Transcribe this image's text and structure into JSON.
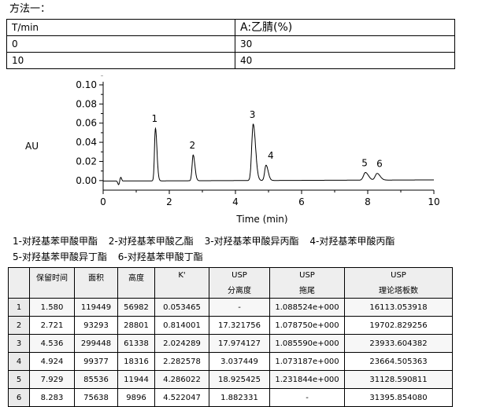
{
  "method": {
    "title": "方法一："
  },
  "gradient": {
    "header": [
      "T/min",
      "A:乙腈(%)"
    ],
    "rows": [
      [
        "0",
        "30"
      ],
      [
        "10",
        "40"
      ]
    ]
  },
  "chart_data": {
    "type": "line",
    "ylabel": "AU",
    "xlabel": "Time (min)",
    "xlim": [
      0,
      10
    ],
    "ylim": [
      -0.01,
      0.1
    ],
    "x_ticks": [
      "0",
      "2",
      "4",
      "6",
      "8",
      "10"
    ],
    "y_ticks": [
      "0.10",
      "0.08",
      "0.06",
      "0.04",
      "0.02",
      "0.00"
    ],
    "peaks": [
      {
        "label": "1",
        "x": 1.58,
        "y": 0.055
      },
      {
        "label": "2",
        "x": 2.721,
        "y": 0.027
      },
      {
        "label": "3",
        "x": 4.536,
        "y": 0.059
      },
      {
        "label": "4",
        "x": 4.924,
        "y": 0.016
      },
      {
        "label": "5",
        "x": 7.929,
        "y": 0.008
      },
      {
        "label": "6",
        "x": 8.283,
        "y": 0.007
      }
    ],
    "grid": false
  },
  "legend": {
    "line1": [
      "1-对羟基苯甲酸甲酯",
      "2-对羟基苯甲酸乙酯",
      "3-对羟基苯甲酸异丙酯",
      "4-对羟基苯甲酸丙酯"
    ],
    "line2": [
      "5-对羟基苯甲酸异丁酯",
      "6-对羟基苯甲酸丁酯"
    ]
  },
  "results": {
    "headers": [
      {
        "top": "",
        "sub": ""
      },
      {
        "top": "保留时间",
        "sub": ""
      },
      {
        "top": "面积",
        "sub": ""
      },
      {
        "top": "高度",
        "sub": ""
      },
      {
        "top": "K'",
        "sub": ""
      },
      {
        "top": "USP",
        "sub": "分离度"
      },
      {
        "top": "USP",
        "sub": "拖尾"
      },
      {
        "top": "USP",
        "sub": "理论塔板数"
      }
    ],
    "rows": [
      [
        "1",
        "1.580",
        "119449",
        "56982",
        "0.053465",
        "-",
        "1.088524e+000",
        "16113.053918"
      ],
      [
        "2",
        "2.721",
        "93293",
        "28801",
        "0.814001",
        "17.321756",
        "1.078750e+000",
        "19702.829256"
      ],
      [
        "3",
        "4.536",
        "299448",
        "61338",
        "2.024289",
        "17.974127",
        "1.085590e+000",
        "23933.604382"
      ],
      [
        "4",
        "4.924",
        "99377",
        "18316",
        "2.282578",
        "3.037449",
        "1.073187e+000",
        "23664.505363"
      ],
      [
        "5",
        "7.929",
        "85536",
        "11944",
        "4.286022",
        "18.925425",
        "1.231844e+000",
        "31128.590811"
      ],
      [
        "6",
        "8.283",
        "75638",
        "9896",
        "4.522047",
        "1.882331",
        "-",
        "31395.854080"
      ]
    ]
  }
}
